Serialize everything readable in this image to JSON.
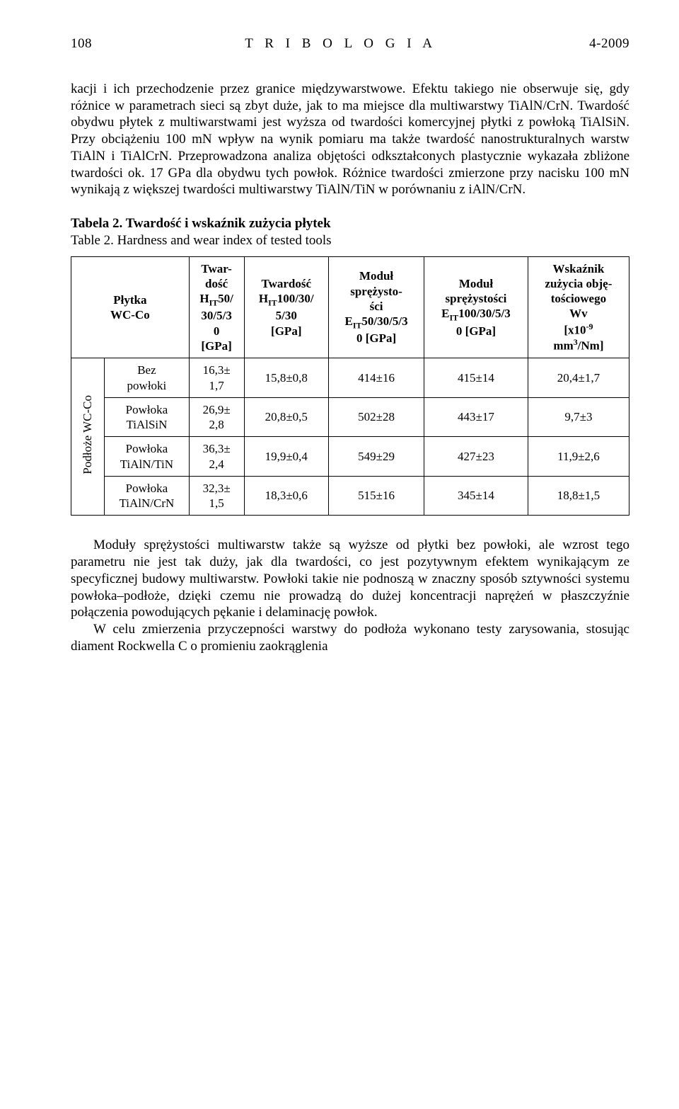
{
  "header": {
    "page_left": "108",
    "title_center": "T R I B O L O G I A",
    "issue_right": "4-2009"
  },
  "paragraph1": "kacji i ich przechodzenie przez granice międzywarstwowe. Efektu takiego nie obserwuje się, gdy różnice w parametrach sieci są zbyt duże, jak to ma miejsce dla multiwarstwy TiAlN/CrN. Twardość obydwu płytek z multiwarstwami jest wyższa od twardości komercyjnej płytki z powłoką TiAlSiN. Przy obciążeniu 100 mN wpływ na wynik pomiaru ma także twardość nanostrukturalnych warstw TiAlN i TiAlCrN. Przeprowadzona analiza objętości odkształconych plastycznie wykazała zbliżone twardości ok. 17 GPa dla obydwu tych powłok. Różnice twardości zmierzone przy nacisku 100 mN wynikają z większej twardości multiwarstwy TiAlN/TiN w porównaniu z iAlN/CrN.",
  "table_caption": {
    "line1": "Tabela 2. Twardość i wskaźnik zużycia płytek",
    "line2": "Table 2.   Hardness and wear index of tested tools"
  },
  "table": {
    "columns": [
      "Płytka WC-Co",
      "Twardość H_IT50/ 30/5/3 0 [GPa]",
      "Twardość H_IT100/30/ 5/30 [GPa]",
      "Moduł sprężystości E_IT50/30/5/3 0 [GPa]",
      "Moduł sprężystości E_IT100/30/5/3 0 [GPa]",
      "Wskaźnik zużycia objętościowego Wv [x10^-9 mm^3/Nm]"
    ],
    "row_group_label": "Podłoże WC-Co",
    "rows": [
      {
        "label": "Bez powłoki",
        "h50": "16,3± 1,7",
        "h100": "15,8±0,8",
        "e50": "414±16",
        "e100": "415±14",
        "wv": "20,4±1,7"
      },
      {
        "label": "Powłoka TiAlSiN",
        "h50": "26,9± 2,8",
        "h100": "20,8±0,5",
        "e50": "502±28",
        "e100": "443±17",
        "wv": "9,7±3"
      },
      {
        "label": "Powłoka TiAlN/TiN",
        "h50": "36,3± 2,4",
        "h100": "19,9±0,4",
        "e50": "549±29",
        "e100": "427±23",
        "wv": "11,9±2,6"
      },
      {
        "label": "Powłoka TiAlN/CrN",
        "h50": "32,3± 1,5",
        "h100": "18,3±0,6",
        "e50": "515±16",
        "e100": "345±14",
        "wv": "18,8±1,5"
      }
    ]
  },
  "paragraph2_a": "Moduły sprężystości multiwarstw także są wyższe od płytki bez powłoki, ale wzrost tego parametru nie jest tak duży, jak dla twardości, co jest pozytywnym efektem wynikającym ze specyficznej budowy multiwarstw. Powłoki takie nie podnoszą w znaczny sposób sztywności systemu powłoka–podłoże, dzięki czemu nie prowadzą do dużej koncentracji naprężeń w płaszczyźnie połączenia powodujących pękanie i delaminację powłok.",
  "paragraph2_b": "W celu zmierzenia przyczepności warstwy do podłoża wykonano testy zarysowania, stosując diament Rockwella C o promieniu zaokrąglenia"
}
